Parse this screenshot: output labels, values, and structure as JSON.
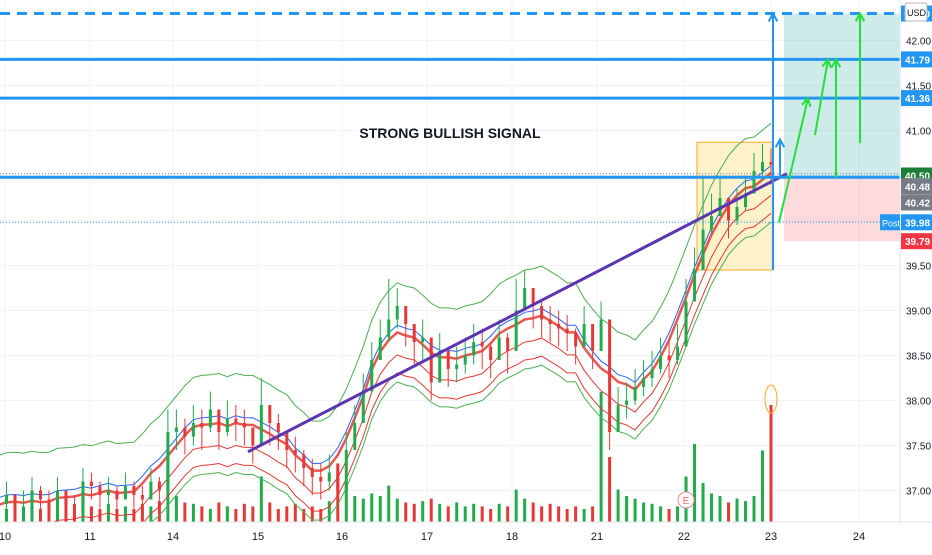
{
  "chart_data": {
    "type": "candlestick",
    "currency": "USD",
    "annotation": "STRONG BULLISH SIGNAL",
    "x_tick_labels": [
      "10",
      "11",
      "14",
      "15",
      "16",
      "17",
      "18",
      "21",
      "22",
      "23",
      "24"
    ],
    "y_ticks": [
      "42.00",
      "41.50",
      "41.00",
      "40.50",
      "40.00",
      "39.50",
      "39.00",
      "38.50",
      "38.00",
      "37.50",
      "37.00"
    ],
    "ylim": [
      36.65,
      42.45
    ],
    "horizontal_levels": [
      {
        "label": "42.30",
        "value": 42.3,
        "style": "dashed",
        "color": "#2196f3"
      },
      {
        "label": "41.79",
        "value": 41.79,
        "style": "solid",
        "color": "#2196f3"
      },
      {
        "label": "41.36",
        "value": 41.36,
        "style": "solid",
        "color": "#2196f3"
      },
      {
        "label": "40.48",
        "value": 40.48,
        "style": "solid",
        "color": "#2196f3"
      }
    ],
    "price_tags": [
      {
        "label": "42.30",
        "value": 42.3,
        "bg": "#2196f3"
      },
      {
        "label": "41.79",
        "value": 41.79,
        "bg": "#2196f3"
      },
      {
        "label": "41.36",
        "value": 41.36,
        "bg": "#2196f3"
      },
      {
        "label": "40.50",
        "value": 40.5,
        "bg": "#1b7f3a"
      },
      {
        "label": "40.48",
        "value": 40.38,
        "bg": "#787b86"
      },
      {
        "label": "40.42",
        "value": 40.2,
        "bg": "#787b86"
      },
      {
        "label": "39.98",
        "value": 39.98,
        "bg": "#2196f3"
      },
      {
        "label": "39.79",
        "value": 39.77,
        "bg": "#f23645"
      }
    ],
    "post_label": "Post",
    "earnings_marker": "E",
    "close_series": [
      36.85,
      36.95,
      36.75,
      36.8,
      37.0,
      36.9,
      36.8,
      37.0,
      36.85,
      36.78,
      37.1,
      37.05,
      36.95,
      37.0,
      36.9,
      37.05,
      36.95,
      36.9,
      37.1,
      37.0,
      37.65,
      37.7,
      37.6,
      37.75,
      37.7,
      37.9,
      37.65,
      37.8,
      37.75,
      37.7,
      37.5,
      37.95,
      37.75,
      37.65,
      37.45,
      37.4,
      37.25,
      37.15,
      37.1,
      37.2,
      37.0,
      37.45,
      37.75,
      38.1,
      38.45,
      38.7,
      38.9,
      39.05,
      38.85,
      38.65,
      38.7,
      38.2,
      38.55,
      38.35,
      38.4,
      38.5,
      38.65,
      38.6,
      38.45,
      38.7,
      38.55,
      39.0,
      39.25,
      39.05,
      38.9,
      38.85,
      38.8,
      38.75,
      38.6,
      38.85,
      38.55,
      38.9,
      37.65,
      37.95,
      38.0,
      38.15,
      38.25,
      38.35,
      38.5,
      38.45,
      38.6,
      39.1,
      39.45,
      39.9,
      40.05,
      40.25,
      40.0,
      40.15,
      40.3,
      40.55,
      40.65,
      40.62
    ],
    "high_series": [
      37.1,
      37.1,
      36.95,
      37.0,
      37.15,
      37.05,
      37.0,
      37.15,
      37.0,
      36.95,
      37.25,
      37.2,
      37.1,
      37.15,
      37.05,
      37.2,
      37.1,
      37.05,
      37.25,
      37.15,
      37.9,
      37.9,
      37.8,
      37.95,
      37.9,
      38.1,
      37.85,
      38.0,
      37.95,
      37.9,
      37.7,
      38.25,
      37.95,
      37.85,
      37.65,
      37.6,
      37.45,
      37.35,
      37.3,
      37.4,
      37.2,
      37.65,
      37.95,
      38.3,
      38.65,
      38.9,
      39.35,
      39.25,
      39.05,
      38.85,
      38.9,
      38.45,
      38.75,
      38.55,
      38.6,
      38.7,
      38.85,
      38.8,
      38.65,
      38.9,
      38.75,
      39.35,
      39.45,
      39.25,
      39.1,
      39.05,
      39.0,
      38.95,
      38.8,
      39.05,
      38.75,
      39.1,
      37.85,
      38.15,
      38.2,
      38.35,
      38.45,
      38.55,
      38.7,
      38.65,
      38.85,
      39.35,
      39.7,
      40.5,
      40.3,
      40.5,
      40.2,
      40.35,
      40.5,
      40.75,
      40.85,
      40.8
    ],
    "low_series": [
      36.7,
      36.75,
      36.6,
      36.65,
      36.8,
      36.7,
      36.65,
      36.8,
      36.7,
      36.65,
      36.9,
      36.9,
      36.8,
      36.85,
      36.75,
      36.9,
      36.8,
      36.75,
      36.9,
      36.85,
      37.3,
      37.45,
      37.4,
      37.5,
      37.45,
      37.65,
      37.45,
      37.6,
      37.55,
      37.5,
      37.3,
      37.7,
      37.5,
      37.45,
      37.25,
      37.2,
      37.05,
      36.95,
      36.9,
      37.0,
      36.8,
      37.2,
      37.5,
      37.85,
      38.2,
      38.45,
      38.65,
      38.8,
      38.6,
      38.4,
      38.45,
      38.0,
      38.3,
      38.15,
      38.2,
      38.3,
      38.4,
      38.35,
      38.25,
      38.45,
      38.3,
      38.75,
      39.0,
      38.8,
      38.7,
      38.65,
      38.6,
      38.55,
      38.4,
      38.6,
      38.35,
      38.65,
      37.45,
      37.75,
      37.8,
      37.95,
      38.05,
      38.15,
      38.3,
      38.25,
      38.4,
      38.85,
      39.2,
      39.65,
      39.85,
      40.05,
      39.8,
      39.95,
      40.1,
      40.35,
      40.45,
      40.4
    ],
    "volume_series": [
      0.2,
      0.1,
      0.15,
      0.12,
      0.18,
      0.1,
      0.14,
      0.12,
      0.16,
      0.1,
      0.25,
      0.12,
      0.1,
      0.14,
      0.1,
      0.12,
      0.1,
      0.14,
      0.12,
      0.16,
      0.55,
      0.2,
      0.15,
      0.14,
      0.12,
      0.1,
      0.15,
      0.12,
      0.1,
      0.14,
      0.12,
      0.35,
      0.15,
      0.1,
      0.12,
      0.14,
      0.1,
      0.12,
      0.1,
      0.16,
      0.45,
      0.3,
      0.2,
      0.18,
      0.22,
      0.2,
      0.28,
      0.18,
      0.15,
      0.14,
      0.16,
      0.18,
      0.14,
      0.12,
      0.15,
      0.12,
      0.14,
      0.12,
      0.1,
      0.14,
      0.12,
      0.25,
      0.18,
      0.15,
      0.12,
      0.14,
      0.12,
      0.1,
      0.12,
      0.1,
      0.12,
      1.0,
      0.5,
      0.25,
      0.2,
      0.18,
      0.15,
      0.14,
      0.12,
      0.1,
      0.12,
      0.35,
      0.6,
      0.3,
      0.22,
      0.2,
      0.15,
      0.18,
      0.16,
      0.2,
      0.55,
      0.9
    ],
    "trendline": {
      "from": {
        "day_index": 3,
        "value": 37.43
      },
      "to": {
        "day_index": 9,
        "value": 40.52
      }
    },
    "bullish_zone_top": 42.3,
    "entry_level": 40.48,
    "stop_zone_bottom": 39.77
  }
}
